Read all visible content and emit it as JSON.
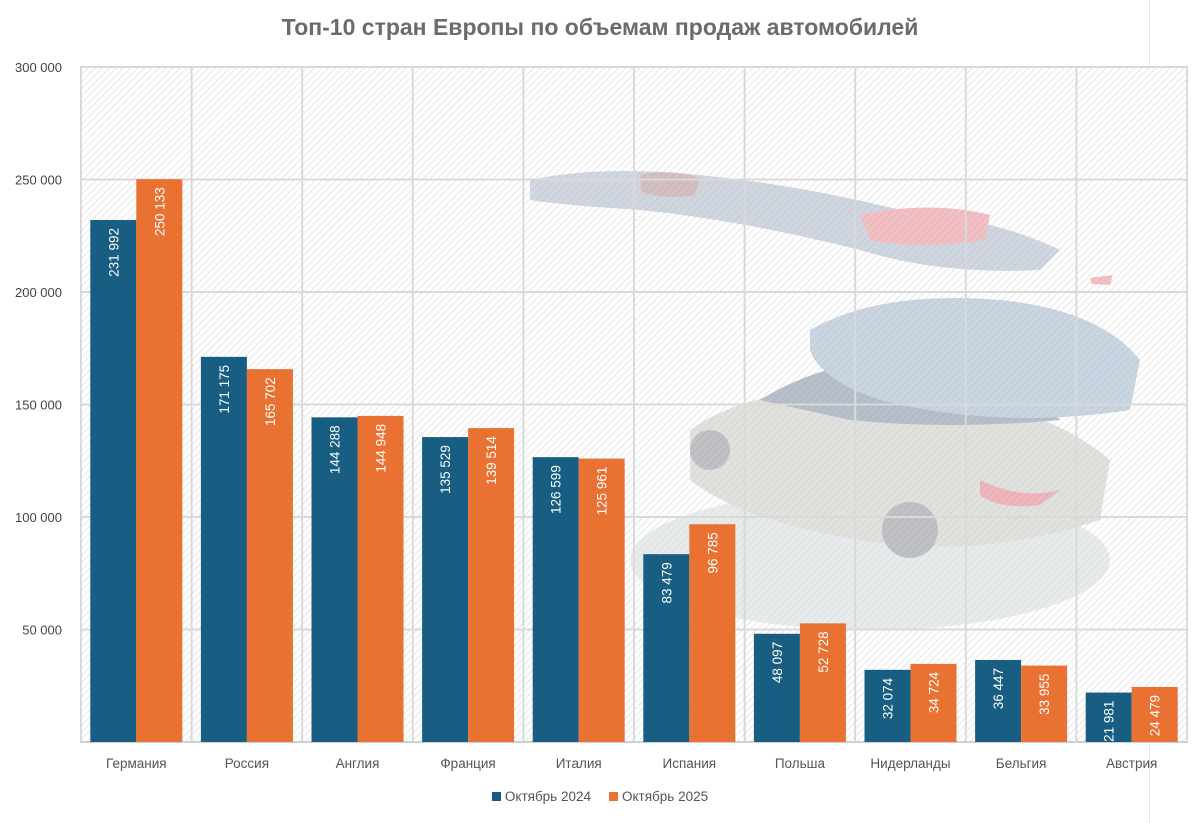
{
  "chart_data": {
    "type": "bar",
    "title": "Топ-10 стран Европы по объемам продаж автомобилей",
    "xlabel": "",
    "ylabel": "",
    "ylim": [
      0,
      300000
    ],
    "yticks": [
      50000,
      100000,
      150000,
      200000,
      250000,
      300000
    ],
    "ytick_labels": [
      "50 000",
      "100 000",
      "150 000",
      "200 000",
      "250 000",
      "300 000"
    ],
    "grid": true,
    "legend_position": "bottom",
    "categories": [
      "Германия",
      "Россия",
      "Англия",
      "Франция",
      "Италия",
      "Испания",
      "Польша",
      "Нидерланды",
      "Бельгия",
      "Австрия"
    ],
    "series": [
      {
        "name": "Октябрь 2024",
        "color": "#175e82",
        "values": [
          231992,
          171175,
          144288,
          135529,
          126599,
          83479,
          48097,
          32074,
          36447,
          21981
        ],
        "labels": [
          "231 992",
          "171 175",
          "144 288",
          "135 529",
          "126 599",
          "83 479",
          "48 097",
          "32 074",
          "36 447",
          "21 981"
        ]
      },
      {
        "name": "Октябрь 2025",
        "color": "#e97132",
        "values": [
          250133,
          165702,
          144948,
          139514,
          125961,
          96785,
          52728,
          34724,
          33955,
          24479
        ],
        "labels": [
          "250 133",
          "165 702",
          "144 948",
          "139 514",
          "125 961",
          "96 785",
          "52 728",
          "34 724",
          "33 955",
          "24 479"
        ]
      }
    ]
  },
  "legend": {
    "items": [
      {
        "label": "Октябрь 2024",
        "color": "#175e82"
      },
      {
        "label": "Октябрь 2025",
        "color": "#e97132"
      }
    ]
  },
  "background_image": "faded-cars-illustration"
}
